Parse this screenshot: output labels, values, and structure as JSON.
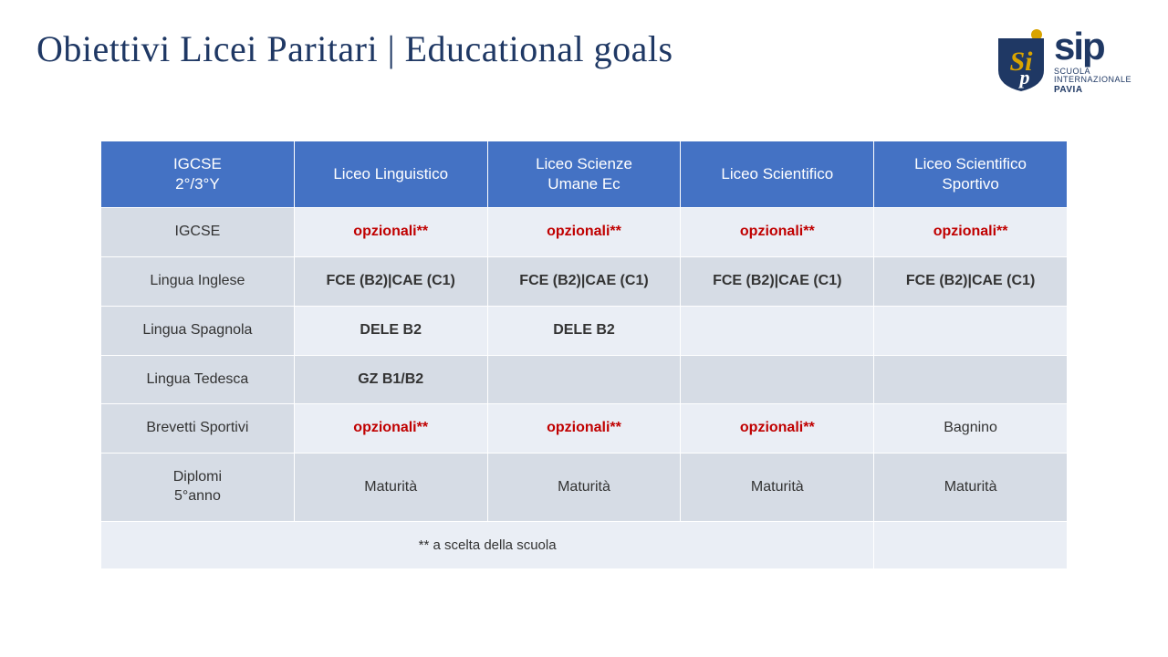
{
  "title": "Obiettivi Licei Paritari | Educational goals",
  "logo": {
    "sip": "sip",
    "line1": "SCUOLA",
    "line2": "INTERNAZIONALE",
    "line3": "PAVIA",
    "shield_color": "#1f3864",
    "accent_color": "#d9a400"
  },
  "table": {
    "header_bg": "#4472c4",
    "header_fg": "#ffffff",
    "rowhead_bg": "#d6dce5",
    "row_odd_bg": "#eaeef5",
    "row_even_bg": "#d6dce5",
    "opt_color": "#c00000",
    "columns": [
      "IGCSE\n2°/3°Y",
      "Liceo Linguistico",
      "Liceo Scienze\nUmane Ec",
      "Liceo Scientifico",
      "Liceo Scientifico\nSportivo"
    ],
    "rows": [
      {
        "head": "IGCSE",
        "cells": [
          {
            "text": "opzionali**",
            "style": "opt"
          },
          {
            "text": "opzionali**",
            "style": "opt"
          },
          {
            "text": "opzionali**",
            "style": "opt"
          },
          {
            "text": "opzionali**",
            "style": "opt"
          }
        ]
      },
      {
        "head": "Lingua Inglese",
        "cells": [
          {
            "text": "FCE (B2)|CAE (C1)",
            "style": "bold"
          },
          {
            "text": "FCE (B2)|CAE (C1)",
            "style": "bold"
          },
          {
            "text": "FCE (B2)|CAE (C1)",
            "style": "bold"
          },
          {
            "text": "FCE (B2)|CAE (C1)",
            "style": "bold"
          }
        ]
      },
      {
        "head": "Lingua Spagnola",
        "cells": [
          {
            "text": "DELE B2",
            "style": "bold"
          },
          {
            "text": "DELE B2",
            "style": "bold"
          },
          {
            "text": "",
            "style": ""
          },
          {
            "text": "",
            "style": ""
          }
        ]
      },
      {
        "head": "Lingua Tedesca",
        "cells": [
          {
            "text": "GZ B1/B2",
            "style": "bold"
          },
          {
            "text": "",
            "style": ""
          },
          {
            "text": "",
            "style": ""
          },
          {
            "text": "",
            "style": ""
          }
        ]
      },
      {
        "head": "Brevetti Sportivi",
        "cells": [
          {
            "text": "opzionali**",
            "style": "opt"
          },
          {
            "text": "opzionali**",
            "style": "opt"
          },
          {
            "text": "opzionali**",
            "style": "opt"
          },
          {
            "text": "Bagnino",
            "style": ""
          }
        ]
      },
      {
        "head": "Diplomi\n5°anno",
        "cells": [
          {
            "text": "Maturità",
            "style": ""
          },
          {
            "text": "Maturità",
            "style": ""
          },
          {
            "text": "Maturità",
            "style": ""
          },
          {
            "text": "Maturità",
            "style": ""
          }
        ]
      }
    ],
    "footnote": "** a scelta della scuola"
  }
}
